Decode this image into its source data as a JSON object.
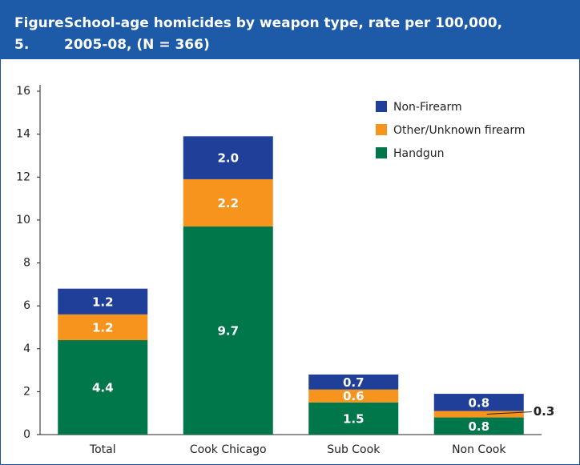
{
  "chart_data": {
    "type": "stacked_bar",
    "figure_label": "Figure 5.",
    "title": "School-age homicides by weapon type, rate per 100,000, 2005-08, (N = 366)",
    "categories": [
      "Total",
      "Cook Chicago",
      "Sub Cook",
      "Non Cook"
    ],
    "series": [
      {
        "name": "Handgun",
        "color": "#00774a",
        "values": [
          4.4,
          9.7,
          1.5,
          0.8
        ],
        "value_labels": [
          "4.4",
          "9.7",
          "1.5",
          "0.8"
        ]
      },
      {
        "name": "Other/Unknown firearm",
        "color": "#f7941d",
        "values": [
          1.2,
          2.2,
          0.6,
          0.3
        ],
        "value_labels": [
          "1.2",
          "2.2",
          "0.6",
          "0.3"
        ]
      },
      {
        "name": "Non-Firearm",
        "color": "#1f3f99",
        "values": [
          1.2,
          2.0,
          0.7,
          0.8
        ],
        "value_labels": [
          "1.2",
          "2.0",
          "0.7",
          "0.8"
        ]
      }
    ],
    "ylim": [
      0,
      16
    ],
    "yticks": [
      0,
      2,
      4,
      6,
      8,
      10,
      12,
      14,
      16
    ],
    "grid": false,
    "legend": "upper right"
  }
}
